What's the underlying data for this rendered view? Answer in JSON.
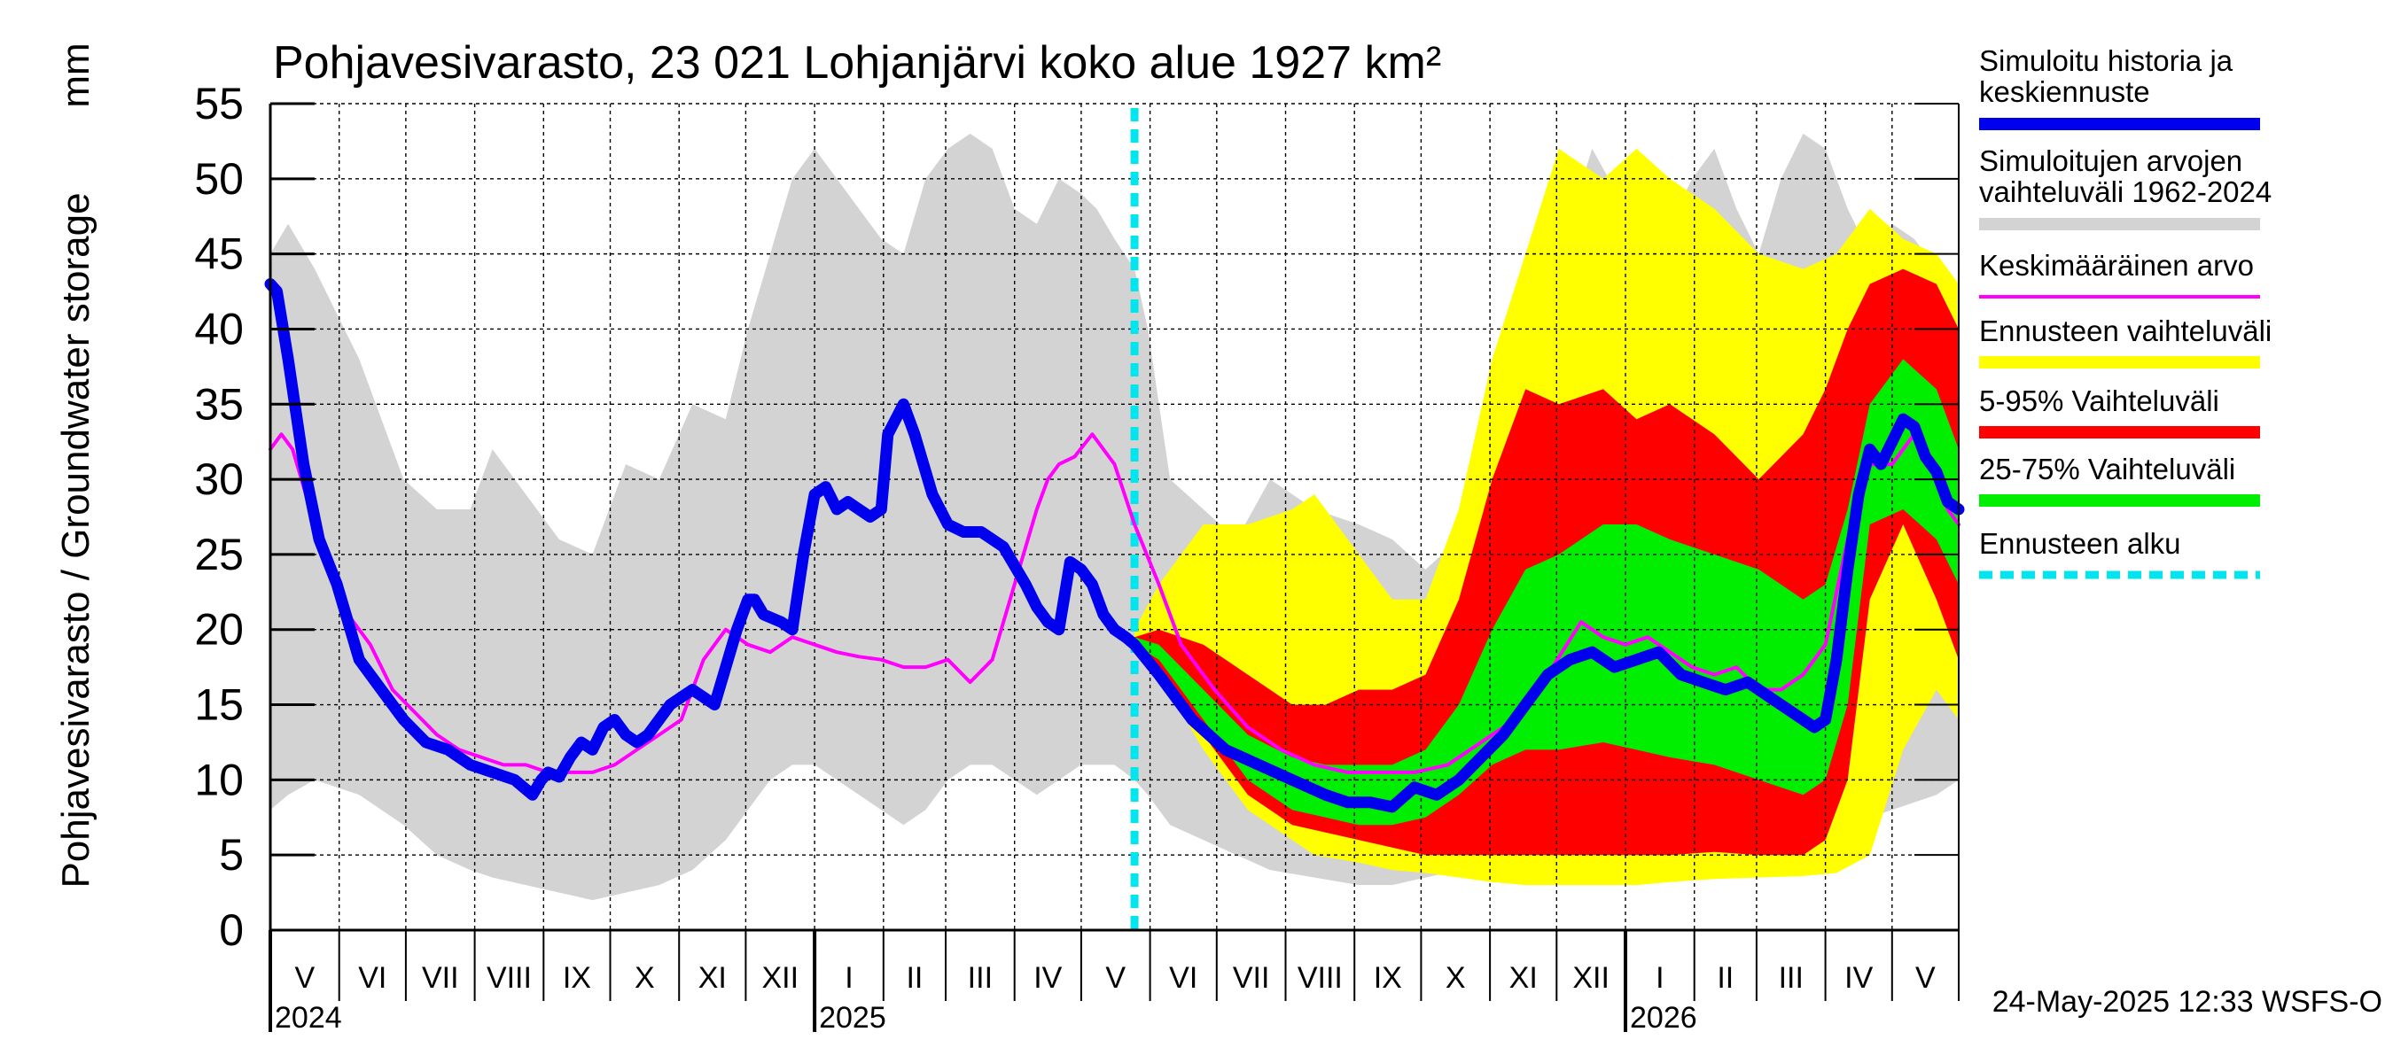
{
  "chart_data": {
    "type": "area",
    "title": "Pohjavesivarasto, 23 021 Lohjanjärvi koko alue 1927 km²",
    "ylabel": "Pohjavesivarasto / Groundwater storage",
    "yunit": "mm",
    "ylim": [
      0,
      55
    ],
    "yticks": [
      0,
      5,
      10,
      15,
      20,
      25,
      30,
      35,
      40,
      45,
      50,
      55
    ],
    "x_start_day": 0,
    "x_end_day": 760,
    "x_unit": "days since 2024-05-01",
    "months": [
      {
        "label": "V",
        "start": 0,
        "end": 31
      },
      {
        "label": "VI",
        "start": 31,
        "end": 61
      },
      {
        "label": "VII",
        "start": 61,
        "end": 92
      },
      {
        "label": "VIII",
        "start": 92,
        "end": 123
      },
      {
        "label": "IX",
        "start": 123,
        "end": 153
      },
      {
        "label": "X",
        "start": 153,
        "end": 184
      },
      {
        "label": "XI",
        "start": 184,
        "end": 214
      },
      {
        "label": "XII",
        "start": 214,
        "end": 245
      },
      {
        "label": "I",
        "start": 245,
        "end": 276
      },
      {
        "label": "II",
        "start": 276,
        "end": 304
      },
      {
        "label": "III",
        "start": 304,
        "end": 335
      },
      {
        "label": "IV",
        "start": 335,
        "end": 365
      },
      {
        "label": "V",
        "start": 365,
        "end": 396
      },
      {
        "label": "VI",
        "start": 396,
        "end": 426
      },
      {
        "label": "VII",
        "start": 426,
        "end": 457
      },
      {
        "label": "VIII",
        "start": 457,
        "end": 488
      },
      {
        "label": "IX",
        "start": 488,
        "end": 518
      },
      {
        "label": "X",
        "start": 518,
        "end": 549
      },
      {
        "label": "XI",
        "start": 549,
        "end": 579
      },
      {
        "label": "XII",
        "start": 579,
        "end": 610
      },
      {
        "label": "I",
        "start": 610,
        "end": 641
      },
      {
        "label": "II",
        "start": 641,
        "end": 669
      },
      {
        "label": "III",
        "start": 669,
        "end": 700
      },
      {
        "label": "IV",
        "start": 700,
        "end": 730
      },
      {
        "label": "V",
        "start": 730,
        "end": 760
      }
    ],
    "years": [
      {
        "label": "2024",
        "day": 0
      },
      {
        "label": "2025",
        "day": 245
      },
      {
        "label": "2026",
        "day": 610
      }
    ],
    "forecast_start_day": 389,
    "series": [
      {
        "name": "Simuloitujen arvojen vaihteluväli 1962-2024",
        "kind": "band",
        "color": "#d3d3d3",
        "x": [
          0,
          8,
          20,
          40,
          60,
          75,
          90,
          100,
          115,
          130,
          145,
          160,
          175,
          190,
          205,
          215,
          225,
          235,
          245,
          255,
          265,
          275,
          285,
          295,
          305,
          315,
          325,
          335,
          345,
          355,
          365,
          372,
          380,
          389,
          395,
          405,
          420,
          435,
          450,
          470,
          490,
          505,
          520,
          535,
          550,
          565,
          580,
          595,
          610,
          620,
          630,
          640,
          650,
          660,
          670,
          680,
          690,
          700,
          710,
          720,
          730,
          740,
          750,
          760
        ],
        "upper": [
          45,
          47,
          44,
          38,
          30,
          28,
          28,
          32,
          29,
          26,
          25,
          31,
          30,
          35,
          34,
          40,
          45,
          50,
          52,
          50,
          48,
          46,
          45,
          50,
          52,
          53,
          52,
          48,
          47,
          50,
          49,
          48,
          46,
          44,
          40,
          30,
          28,
          26,
          30,
          28,
          27,
          26,
          24,
          26,
          30,
          38,
          45,
          52,
          48,
          45,
          47,
          50,
          52,
          48,
          45,
          50,
          53,
          52,
          48,
          45,
          47,
          46,
          44,
          43
        ],
        "lower": [
          8,
          9,
          10,
          9,
          7,
          5,
          4,
          3.5,
          3,
          2.5,
          2,
          2.5,
          3,
          4,
          6,
          8,
          10,
          11,
          11,
          10,
          9,
          8,
          7,
          8,
          10,
          11,
          11,
          10,
          9,
          10,
          11,
          11,
          11,
          10,
          9,
          7,
          6,
          5,
          4,
          3.5,
          3,
          3,
          3.5,
          4,
          4.5,
          5,
          6,
          6.5,
          6,
          5.5,
          5.5,
          5,
          4.5,
          4,
          4,
          4.5,
          5,
          5.5,
          6.5,
          7.5,
          8,
          8.5,
          9,
          10
        ]
      },
      {
        "name": "Ennusteen vaihteluväli",
        "kind": "band",
        "color": "#ffff00",
        "x": [
          389,
          400,
          420,
          440,
          460,
          470,
          490,
          505,
          520,
          535,
          550,
          565,
          580,
          600,
          615,
          630,
          650,
          670,
          690,
          705,
          720,
          735,
          750,
          760
        ],
        "upper": [
          20,
          23,
          27,
          27,
          28,
          29,
          25,
          22,
          22,
          28,
          38,
          45,
          52,
          50,
          52,
          50,
          48,
          45,
          44,
          45,
          48,
          46,
          45,
          43
        ],
        "lower": [
          19,
          17,
          12,
          8,
          6,
          5,
          4.5,
          4,
          3.8,
          3.5,
          3.2,
          3,
          3,
          3,
          3,
          3.2,
          3.4,
          3.5,
          3.6,
          3.8,
          5,
          12,
          16,
          14
        ]
      },
      {
        "name": "5-95% Vaihteluväli",
        "kind": "band",
        "color": "#ff0000",
        "x": [
          389,
          400,
          420,
          440,
          460,
          475,
          490,
          505,
          520,
          535,
          550,
          565,
          580,
          600,
          615,
          630,
          650,
          670,
          690,
          700,
          710,
          720,
          735,
          750,
          760
        ],
        "upper": [
          19.5,
          20,
          19,
          17,
          15,
          15,
          16,
          16,
          17,
          22,
          30,
          36,
          35,
          36,
          34,
          35,
          33,
          30,
          33,
          36,
          40,
          43,
          44,
          43,
          40
        ],
        "lower": [
          19,
          17,
          13,
          9,
          7,
          6.5,
          6,
          5.5,
          5,
          5,
          5,
          5,
          5,
          5,
          5,
          5,
          5.2,
          5,
          5,
          6,
          10,
          22,
          27,
          22,
          18
        ]
      },
      {
        "name": "25-75% Vaihteluväli",
        "kind": "band",
        "color": "#00ee00",
        "x": [
          389,
          400,
          420,
          440,
          460,
          475,
          490,
          505,
          520,
          535,
          550,
          565,
          580,
          600,
          615,
          630,
          650,
          670,
          690,
          700,
          710,
          720,
          735,
          750,
          760
        ],
        "upper": [
          19.5,
          19,
          16,
          13,
          11.5,
          11,
          11,
          11,
          12,
          15,
          20,
          24,
          25,
          27,
          27,
          26,
          25,
          24,
          22,
          23,
          28,
          35,
          38,
          36,
          32
        ],
        "lower": [
          19,
          18,
          14,
          10,
          8,
          7.5,
          7,
          7,
          7.5,
          9,
          11,
          12,
          12,
          12.5,
          12,
          11.5,
          11,
          10,
          9,
          10,
          15,
          27,
          28,
          26,
          23
        ]
      },
      {
        "name": "Keskimääräinen arvo",
        "kind": "line",
        "color": "#ff00ff",
        "x": [
          0,
          5,
          10,
          18,
          25,
          35,
          45,
          55,
          65,
          75,
          85,
          95,
          105,
          115,
          125,
          135,
          145,
          155,
          165,
          175,
          185,
          195,
          205,
          215,
          225,
          235,
          245,
          255,
          265,
          275,
          285,
          295,
          305,
          315,
          325,
          335,
          345,
          350,
          355,
          362,
          370,
          380,
          389,
          400,
          410,
          425,
          440,
          455,
          470,
          485,
          500,
          515,
          530,
          545,
          560,
          575,
          590,
          600,
          610,
          620,
          630,
          640,
          650,
          660,
          670,
          680,
          690,
          700,
          710,
          720,
          730,
          735,
          740,
          745,
          750,
          755,
          760
        ],
        "y": [
          32,
          33,
          32,
          28,
          25,
          21,
          19,
          16,
          14.5,
          13,
          12,
          11.5,
          11,
          11,
          10.5,
          10.5,
          10.5,
          11,
          12,
          13,
          14,
          18,
          20,
          19,
          18.5,
          19.5,
          19,
          18.5,
          18.2,
          18,
          17.5,
          17.5,
          18,
          16.5,
          18,
          23,
          28,
          30,
          31,
          31.5,
          33,
          31,
          27,
          23,
          19,
          16,
          13.5,
          12,
          11,
          10.5,
          10.5,
          10.5,
          11,
          12.5,
          14,
          17,
          20.5,
          19.5,
          19,
          19.5,
          18.5,
          17.5,
          17,
          17.5,
          16,
          16,
          17,
          19,
          26,
          31,
          31,
          32,
          33,
          32,
          30,
          28,
          27
        ]
      },
      {
        "name": "Simuloitu historia ja keskiennuste",
        "kind": "line",
        "color": "#0000ee",
        "x": [
          0,
          3,
          8,
          15,
          22,
          30,
          40,
          50,
          60,
          70,
          80,
          90,
          100,
          110,
          118,
          122,
          125,
          130,
          135,
          140,
          145,
          150,
          155,
          160,
          165,
          170,
          180,
          190,
          200,
          210,
          215,
          218,
          222,
          230,
          235,
          240,
          245,
          250,
          255,
          260,
          265,
          270,
          275,
          278,
          285,
          290,
          298,
          305,
          312,
          320,
          330,
          340,
          345,
          350,
          355,
          360,
          365,
          370,
          375,
          380,
          385,
          389,
          400,
          415,
          430,
          445,
          460,
          475,
          485,
          495,
          505,
          515,
          525,
          535,
          545,
          555,
          565,
          575,
          585,
          595,
          605,
          615,
          625,
          635,
          645,
          655,
          665,
          675,
          685,
          695,
          700,
          705,
          710,
          715,
          720,
          725,
          730,
          735,
          740,
          745,
          750,
          755,
          760
        ],
        "y": [
          43,
          42.5,
          38,
          31,
          26,
          23,
          18,
          16,
          14,
          12.5,
          12,
          11,
          10.5,
          10,
          9,
          10,
          10.5,
          10.2,
          11.5,
          12.5,
          12,
          13.5,
          14,
          13,
          12.5,
          13,
          15,
          16,
          15,
          20,
          22,
          22,
          21,
          20.5,
          20,
          25,
          29,
          29.5,
          28,
          28.5,
          28,
          27.5,
          28,
          33,
          35,
          33,
          29,
          27,
          26.5,
          26.5,
          25.5,
          23,
          21.5,
          20.5,
          20,
          24.5,
          24,
          23,
          21,
          20,
          19.5,
          19,
          17,
          14,
          12,
          11,
          10,
          9,
          8.5,
          8.5,
          8.2,
          9.5,
          9,
          10,
          11.5,
          13,
          15,
          17,
          18,
          18.5,
          17.5,
          18,
          18.5,
          17,
          16.5,
          16,
          16.5,
          15.5,
          14.5,
          13.5,
          14,
          18,
          24,
          29,
          32,
          31,
          32.5,
          34,
          33.5,
          31.5,
          30.5,
          28.5,
          28
        ]
      }
    ],
    "legend": [
      {
        "label": "Simuloitu historia ja keskiennuste",
        "line1": "Simuloitu historia ja",
        "line2": "keskiennuste",
        "color": "#0000ee",
        "style": "thick"
      },
      {
        "label": "Simuloitujen arvojen vaihteluväli 1962-2024",
        "line1": "Simuloitujen arvojen",
        "line2": "vaihteluväli 1962-2024",
        "color": "#d3d3d3",
        "style": "thick"
      },
      {
        "label": "Keskimääräinen arvo",
        "line1": "Keskimääräinen arvo",
        "line2": "",
        "color": "#ff00ff",
        "style": "thin"
      },
      {
        "label": "Ennusteen vaihteluväli",
        "line1": "Ennusteen vaihteluväli",
        "line2": "",
        "color": "#ffff00",
        "style": "thick"
      },
      {
        "label": "5-95% Vaihteluväli",
        "line1": "5-95% Vaihteluväli",
        "line2": "",
        "color": "#ff0000",
        "style": "thick"
      },
      {
        "label": "25-75% Vaihteluväli",
        "line1": "25-75% Vaihteluväli",
        "line2": "",
        "color": "#00ee00",
        "style": "thick"
      },
      {
        "label": "Ennusteen alku",
        "line1": "Ennusteen alku",
        "line2": "",
        "color": "#00e5ee",
        "style": "dashed"
      }
    ],
    "footer": "24-May-2025 12:33 WSFS-O"
  }
}
